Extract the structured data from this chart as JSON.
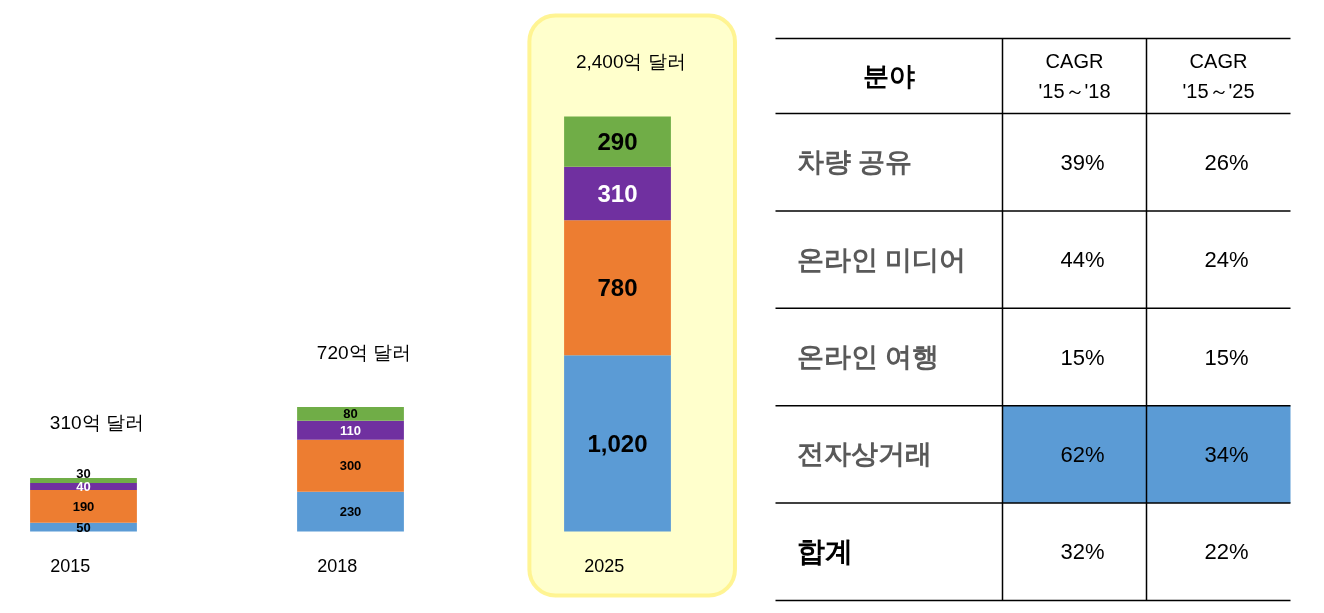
{
  "chart_data": [
    {
      "type": "bar",
      "stacked": true,
      "categories": [
        "2015",
        "2018",
        "2025"
      ],
      "series": [
        {
          "color": "#5b9bd5",
          "values": [
            50,
            230,
            1020
          ],
          "value_labels": [
            "50",
            "230",
            "1,020"
          ]
        },
        {
          "color": "#ed7d31",
          "values": [
            190,
            300,
            780
          ],
          "value_labels": [
            "190",
            "300",
            "780"
          ]
        },
        {
          "color": "#7030a0",
          "values": [
            40,
            110,
            310
          ],
          "value_labels": [
            "40",
            "110",
            "310"
          ]
        },
        {
          "color": "#70ad47",
          "values": [
            30,
            80,
            290
          ],
          "value_labels": [
            "30",
            "80",
            "290"
          ]
        }
      ],
      "totals": [
        "310억 달러",
        "720억 달러",
        "2,400억 달러"
      ],
      "bands": [
        {
          "axis": "x",
          "from": "2025",
          "to": "2025",
          "color": "#ffffcc"
        }
      ]
    },
    {
      "type": "heatmap",
      "ylabel": "분야",
      "categories": [
        "CAGR '15～'18",
        "CAGR '15～'25"
      ],
      "y_categories": [
        "차량 공유",
        "온라인 미디어",
        "온라인 여행",
        "전자상거래",
        "합계"
      ],
      "cells": [
        [
          39,
          26
        ],
        [
          44,
          24
        ],
        [
          15,
          15
        ],
        [
          62,
          34
        ],
        [
          32,
          22
        ]
      ],
      "cell_labels": [
        [
          "39%",
          "26%"
        ],
        [
          "44%",
          "24%"
        ],
        [
          "15%",
          "15%"
        ],
        [
          "62%",
          "34%"
        ],
        [
          "32%",
          "22%"
        ]
      ],
      "bands": [
        {
          "axis": "y",
          "from": "전자상거래",
          "to": "전자상거래",
          "color": "#5b9bd5"
        }
      ],
      "grid": true
    }
  ]
}
